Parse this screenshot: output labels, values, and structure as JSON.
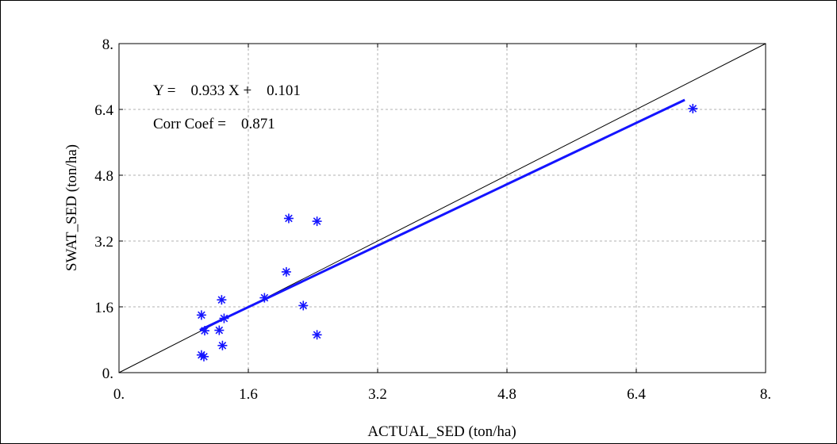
{
  "chart_data": {
    "type": "scatter",
    "xlabel": "ACTUAL_SED (ton/ha)",
    "ylabel": "SWAT_SED (ton/ha)",
    "xlim": [
      0,
      8
    ],
    "ylim": [
      0,
      8
    ],
    "xticks": [
      "0.",
      "1.6",
      "3.2",
      "4.8",
      "6.4",
      "8."
    ],
    "yticks": [
      "0.",
      "1.6",
      "3.2",
      "4.8",
      "6.4",
      "8."
    ],
    "grid": true,
    "annotations": {
      "equation": "Y =    0.933 X +    0.101",
      "corr": "Corr Coef =    0.871"
    },
    "points": [
      [
        1.02,
        1.4
      ],
      [
        1.02,
        0.43
      ],
      [
        1.05,
        0.39
      ],
      [
        1.06,
        1.02
      ],
      [
        1.24,
        1.03
      ],
      [
        1.27,
        1.77
      ],
      [
        1.28,
        0.66
      ],
      [
        1.3,
        1.32
      ],
      [
        1.8,
        1.82
      ],
      [
        2.07,
        2.45
      ],
      [
        2.1,
        3.75
      ],
      [
        2.28,
        1.63
      ],
      [
        2.45,
        3.68
      ],
      [
        2.45,
        0.92
      ],
      [
        7.1,
        6.42
      ]
    ],
    "fit": {
      "slope": 0.933,
      "intercept": 0.101,
      "x_range": [
        1.0,
        7.0
      ]
    },
    "identity_line": true,
    "colors": {
      "points": "#1414ff",
      "fit": "#1414ff",
      "identity": "#000000",
      "grid": "#b0b0b0"
    }
  }
}
